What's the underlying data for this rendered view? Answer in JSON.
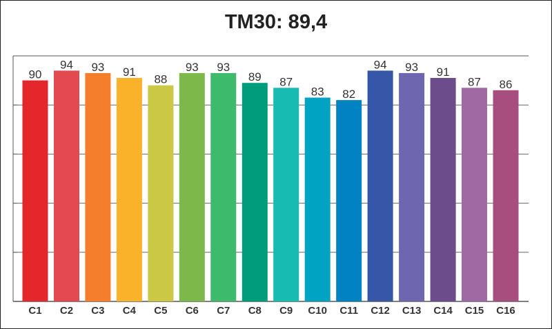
{
  "chart_data": {
    "type": "bar",
    "title": "TM30: 89,4",
    "categories": [
      "C1",
      "C2",
      "C3",
      "C4",
      "C5",
      "C6",
      "C7",
      "C8",
      "C9",
      "C10",
      "C11",
      "C12",
      "C13",
      "C14",
      "C15",
      "C16"
    ],
    "values": [
      90,
      94,
      93,
      91,
      88,
      93,
      93,
      89,
      87,
      83,
      82,
      94,
      93,
      91,
      87,
      86
    ],
    "colors": [
      "#e3272a",
      "#e34a4f",
      "#f47e2c",
      "#fbb22b",
      "#cbc845",
      "#7db84a",
      "#3dba6b",
      "#009c7c",
      "#17bbb0",
      "#00a4c2",
      "#0082c3",
      "#3657a7",
      "#6e66ae",
      "#6c4c8b",
      "#9f6aa3",
      "#a74e7f"
    ],
    "ylim": [
      0,
      100
    ],
    "grid": true,
    "legend": "none",
    "xlabel": "",
    "ylabel": ""
  }
}
